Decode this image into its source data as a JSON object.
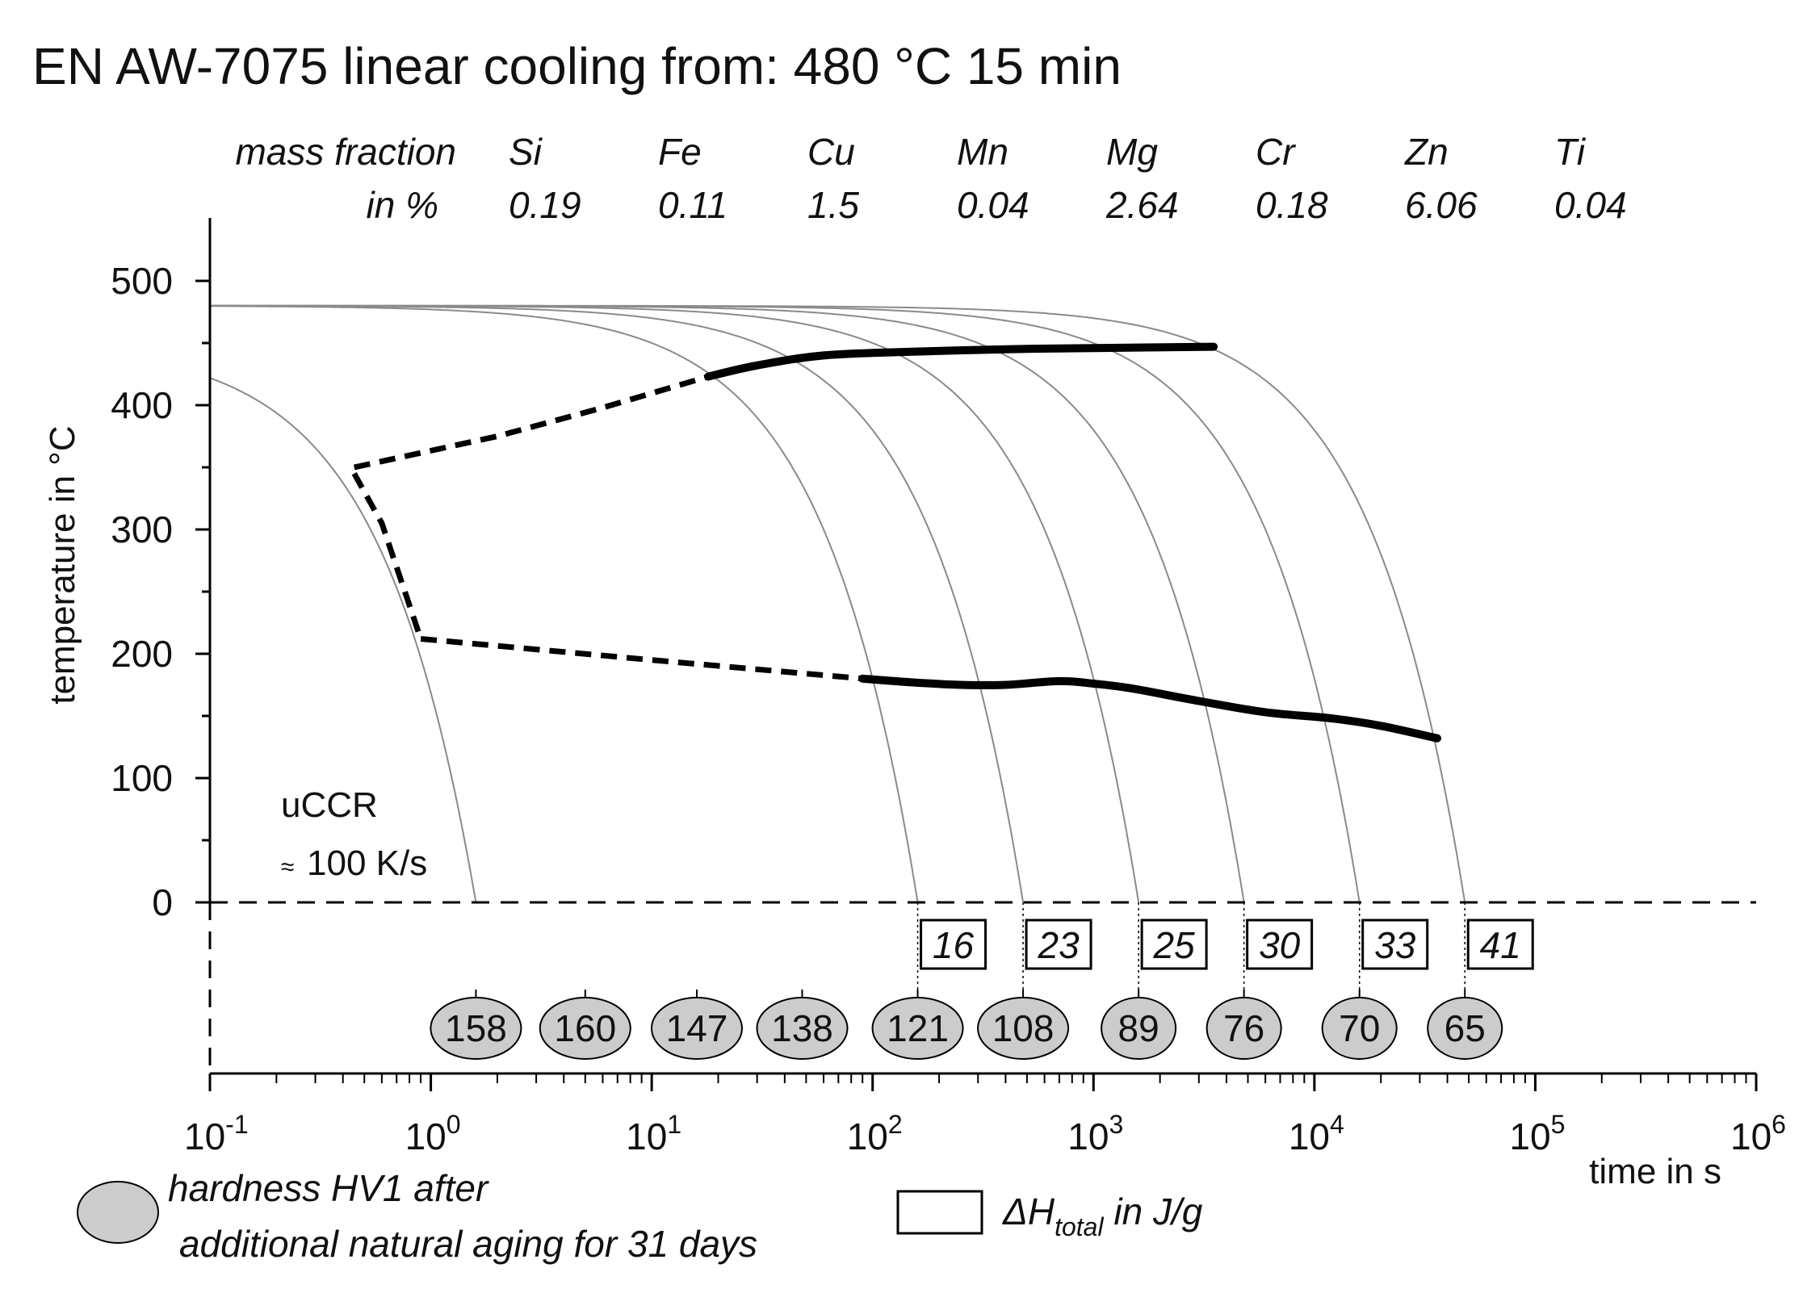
{
  "chart_data": {
    "type": "line",
    "title": "EN AW-7075 linear cooling from: 480 °C 15 min",
    "composition": {
      "label_line1": "mass fraction",
      "label_line2": "in %",
      "elements": [
        {
          "symbol": "Si",
          "value": "0.19"
        },
        {
          "symbol": "Fe",
          "value": "0.11"
        },
        {
          "symbol": "Cu",
          "value": "1.5"
        },
        {
          "symbol": "Mn",
          "value": "0.04"
        },
        {
          "symbol": "Mg",
          "value": "2.64"
        },
        {
          "symbol": "Cr",
          "value": "0.18"
        },
        {
          "symbol": "Zn",
          "value": "6.06"
        },
        {
          "symbol": "Ti",
          "value": "0.04"
        }
      ]
    },
    "xlabel": "time in s",
    "ylabel": "temperature in °C",
    "xscale": "log",
    "xlim": [
      0.1,
      1000000
    ],
    "ylim": [
      0,
      550
    ],
    "x_ticks": [
      {
        "value": 0.1,
        "base": "10",
        "exp": "-1"
      },
      {
        "value": 1,
        "base": "10",
        "exp": "0"
      },
      {
        "value": 10,
        "base": "10",
        "exp": "1"
      },
      {
        "value": 100,
        "base": "10",
        "exp": "2"
      },
      {
        "value": 1000,
        "base": "10",
        "exp": "3"
      },
      {
        "value": 10000,
        "base": "10",
        "exp": "4"
      },
      {
        "value": 100000,
        "base": "10",
        "exp": "5"
      },
      {
        "value": 1000000,
        "base": "10",
        "exp": "6"
      }
    ],
    "y_ticks": [
      {
        "value": 0,
        "label": "0"
      },
      {
        "value": 100,
        "label": "100"
      },
      {
        "value": 200,
        "label": "200"
      },
      {
        "value": 300,
        "label": "300"
      },
      {
        "value": 400,
        "label": "400"
      },
      {
        "value": 500,
        "label": "500"
      }
    ],
    "start_temperature": 480,
    "cooling_curves": [
      {
        "t_end": 1.6,
        "start_temperature": 450
      },
      {
        "t_end": 160
      },
      {
        "t_end": 480
      },
      {
        "t_end": 1600
      },
      {
        "t_end": 4800
      },
      {
        "t_end": 16000
      },
      {
        "t_end": 48000
      }
    ],
    "boundary_solid": [
      {
        "name": "upper",
        "points": [
          [
            18,
            423
          ],
          [
            30,
            432
          ],
          [
            60,
            440
          ],
          [
            150,
            443
          ],
          [
            400,
            445
          ],
          [
            1000,
            446
          ],
          [
            3500,
            447
          ]
        ]
      },
      {
        "name": "lower",
        "points": [
          [
            90,
            180
          ],
          [
            150,
            177
          ],
          [
            250,
            175
          ],
          [
            400,
            175
          ],
          [
            700,
            178
          ],
          [
            1000,
            176
          ],
          [
            1500,
            172
          ],
          [
            3000,
            162
          ],
          [
            6000,
            153
          ],
          [
            12000,
            148
          ],
          [
            20000,
            142
          ],
          [
            36000,
            132
          ]
        ]
      }
    ],
    "boundary_dashed": [
      {
        "name": "upper-dashed",
        "points": [
          [
            0.45,
            350
          ],
          [
            2,
            375
          ],
          [
            6,
            398
          ],
          [
            18,
            423
          ]
        ]
      },
      {
        "name": "nose-dashed",
        "points": [
          [
            0.45,
            345
          ],
          [
            0.6,
            305
          ],
          [
            0.9,
            212
          ]
        ]
      },
      {
        "name": "lower-dashed",
        "points": [
          [
            0.9,
            212
          ],
          [
            10,
            195
          ],
          [
            90,
            180
          ]
        ]
      }
    ],
    "delta_H": [
      {
        "t": 160,
        "label": "16"
      },
      {
        "t": 480,
        "label": "23"
      },
      {
        "t": 1600,
        "label": "25"
      },
      {
        "t": 4800,
        "label": "30"
      },
      {
        "t": 16000,
        "label": "33"
      },
      {
        "t": 48000,
        "label": "41"
      }
    ],
    "hardness": [
      {
        "t": 1.6,
        "label": "158"
      },
      {
        "t": 5,
        "label": "160"
      },
      {
        "t": 16,
        "label": "147"
      },
      {
        "t": 48,
        "label": "138"
      },
      {
        "t": 160,
        "label": "121"
      },
      {
        "t": 480,
        "label": "108"
      },
      {
        "t": 1600,
        "label": "89"
      },
      {
        "t": 4800,
        "label": "76"
      },
      {
        "t": 16000,
        "label": "70"
      },
      {
        "t": 48000,
        "label": "65"
      }
    ],
    "annotations": {
      "uccr_line1": "uCCR",
      "uccr_approx": "≈",
      "uccr_line2": "100 K/s"
    },
    "legend": {
      "hardness_line1": "hardness HV1 after",
      "hardness_line2": "additional natural aging for 31 days",
      "enthalpy_delta": "ΔH",
      "enthalpy_sub": "total",
      "enthalpy_rest": " in J/g"
    },
    "colors": {
      "curve": "#8a8a8a",
      "boundary": "#000000",
      "ellipse_fill": "#cccccc",
      "axis": "#000000"
    }
  }
}
